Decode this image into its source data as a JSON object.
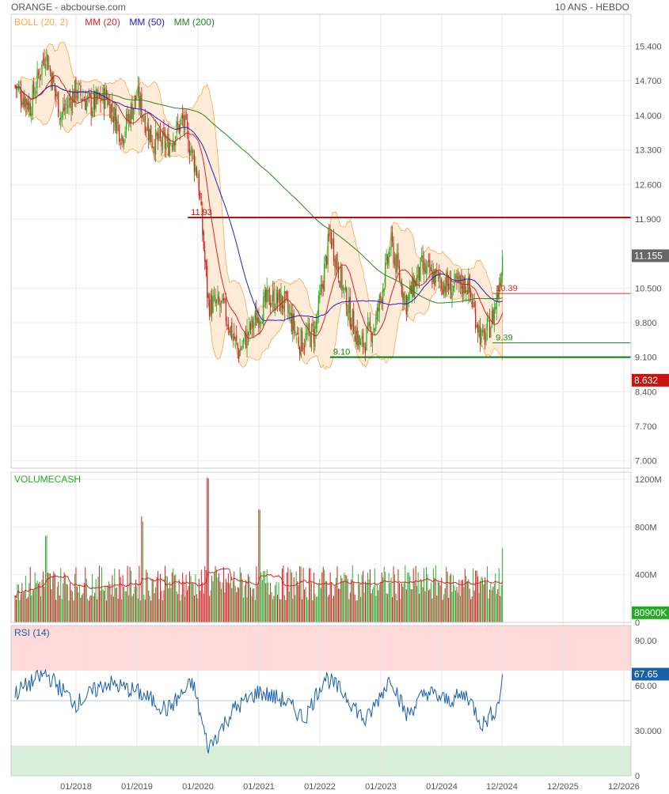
{
  "header": {
    "left": "ORANGE - abcbourse.com",
    "right": "10 ANS - HEBDO"
  },
  "chart_data": [
    {
      "type": "line",
      "panel": "price",
      "legend": [
        {
          "label": "BOLL (20, 2)",
          "color": "#f5a94f"
        },
        {
          "label": "MM (20)",
          "color": "#dd2222"
        },
        {
          "label": "MM (50)",
          "color": "#2222bb"
        },
        {
          "label": "MM (200)",
          "color": "#228822"
        }
      ],
      "y_ticks": [
        {
          "v": 15.4,
          "label": "15.400"
        },
        {
          "v": 14.7,
          "label": "14.700"
        },
        {
          "v": 14.0,
          "label": "14.000"
        },
        {
          "v": 13.3,
          "label": "13.300"
        },
        {
          "v": 12.6,
          "label": "12.600"
        },
        {
          "v": 11.9,
          "label": "11.900"
        },
        {
          "v": 10.5,
          "label": "10.500"
        },
        {
          "v": 9.8,
          "label": "9.800"
        },
        {
          "v": 9.1,
          "label": "9.100"
        },
        {
          "v": 8.4,
          "label": "8.400"
        },
        {
          "v": 7.7,
          "label": "7.700"
        },
        {
          "v": 7.0,
          "label": "7.000"
        }
      ],
      "ylim": [
        6.85,
        16.05
      ],
      "last_price": {
        "label": "11.155",
        "v": 11.155,
        "color": "#666666"
      },
      "low_marker": {
        "label": "8.632",
        "color": "#cc1111"
      },
      "lines": [
        {
          "label": "11.93",
          "v": 11.93,
          "color": "#bb1111",
          "from": "2019-11"
        },
        {
          "label": "10.39",
          "v": 10.39,
          "color": "#cc3333",
          "from": "2024-11"
        },
        {
          "label": "9.39",
          "v": 9.39,
          "color": "#228822",
          "from": "2024-11"
        },
        {
          "label": "9.10",
          "v": 9.1,
          "color": "#117711",
          "from": "2022-03"
        }
      ],
      "weekly_close_anchors": [
        [
          "2017-01",
          14.6
        ],
        [
          "2017-04",
          14.2
        ],
        [
          "2017-07",
          15.3
        ],
        [
          "2017-10",
          14.0
        ],
        [
          "2018-01",
          14.5
        ],
        [
          "2018-04",
          14.2
        ],
        [
          "2018-07",
          14.4
        ],
        [
          "2018-10",
          13.6
        ],
        [
          "2019-01",
          14.4
        ],
        [
          "2019-04",
          13.5
        ],
        [
          "2019-07",
          13.4
        ],
        [
          "2019-10",
          13.9
        ],
        [
          "2020-01",
          12.8
        ],
        [
          "2020-03",
          10.2
        ],
        [
          "2020-06",
          10.1
        ],
        [
          "2020-09",
          9.2
        ],
        [
          "2020-12",
          9.8
        ],
        [
          "2021-03",
          10.3
        ],
        [
          "2021-06",
          10.2
        ],
        [
          "2021-09",
          9.4
        ],
        [
          "2021-12",
          9.6
        ],
        [
          "2022-03",
          11.6
        ],
        [
          "2022-06",
          10.3
        ],
        [
          "2022-09",
          9.3
        ],
        [
          "2022-12",
          9.8
        ],
        [
          "2023-03",
          11.4
        ],
        [
          "2023-06",
          10.2
        ],
        [
          "2023-09",
          10.9
        ],
        [
          "2023-12",
          10.7
        ],
        [
          "2024-03",
          10.5
        ],
        [
          "2024-06",
          10.6
        ],
        [
          "2024-09",
          9.4
        ],
        [
          "2024-11",
          9.9
        ],
        [
          "2024-12",
          10.4
        ],
        [
          "2025-01",
          11.155
        ]
      ]
    },
    {
      "type": "bar",
      "panel": "volume",
      "title": "VOLUMECASH",
      "y_ticks": [
        {
          "v": 1200,
          "label": "1200M"
        },
        {
          "v": 800,
          "label": "800M"
        },
        {
          "v": 400,
          "label": "400M"
        },
        {
          "v": 0,
          "label": "0"
        }
      ],
      "ylim": [
        0,
        1260
      ],
      "last_value": {
        "label": "80900K",
        "color": "#22aa22"
      },
      "typical_volume_m": 330,
      "peaks_m": [
        [
          "2020-03",
          1250
        ],
        [
          "2020-03",
          1000
        ],
        [
          "2021-01",
          950
        ],
        [
          "2019-02",
          930
        ],
        [
          "2025-01",
          660
        ],
        [
          "2017-07",
          750
        ]
      ]
    },
    {
      "type": "line",
      "panel": "rsi",
      "title": "RSI (14)",
      "y_ticks": [
        {
          "v": 90,
          "label": "90.00"
        },
        {
          "v": 60,
          "label": "60.00"
        },
        {
          "v": 30,
          "label": "30.000"
        },
        {
          "v": 0,
          "label": "0"
        }
      ],
      "ylim": [
        0,
        100
      ],
      "overbought": 70,
      "oversold": 20,
      "midline": 50,
      "last_value": {
        "label": "67.65",
        "color": "#1a5fa8"
      },
      "anchors": [
        [
          "2017-01",
          55
        ],
        [
          "2017-07",
          68
        ],
        [
          "2018-01",
          48
        ],
        [
          "2018-07",
          62
        ],
        [
          "2019-01",
          56
        ],
        [
          "2019-07",
          44
        ],
        [
          "2019-12",
          62
        ],
        [
          "2020-03",
          18
        ],
        [
          "2020-08",
          44
        ],
        [
          "2021-01",
          56
        ],
        [
          "2021-06",
          50
        ],
        [
          "2021-10",
          38
        ],
        [
          "2022-02",
          66
        ],
        [
          "2022-06",
          54
        ],
        [
          "2022-10",
          36
        ],
        [
          "2023-03",
          66
        ],
        [
          "2023-06",
          40
        ],
        [
          "2023-10",
          56
        ],
        [
          "2024-02",
          50
        ],
        [
          "2024-06",
          54
        ],
        [
          "2024-09",
          34
        ],
        [
          "2024-12",
          46
        ],
        [
          "2025-01",
          67.65
        ]
      ]
    }
  ],
  "x_axis": {
    "ticks": [
      {
        "d": "2018-01",
        "label": "01/2018"
      },
      {
        "d": "2019-01",
        "label": "01/2019"
      },
      {
        "d": "2020-01",
        "label": "01/2020"
      },
      {
        "d": "2021-01",
        "label": "01/2021"
      },
      {
        "d": "2022-01",
        "label": "01/2022"
      },
      {
        "d": "2023-01",
        "label": "01/2023"
      },
      {
        "d": "2024-01",
        "label": "01/2024"
      },
      {
        "d": "2024-12",
        "label": "12/2024"
      },
      {
        "d": "2025-12",
        "label": "12/2025"
      },
      {
        "d": "2026-12",
        "label": "12/2026"
      }
    ]
  }
}
